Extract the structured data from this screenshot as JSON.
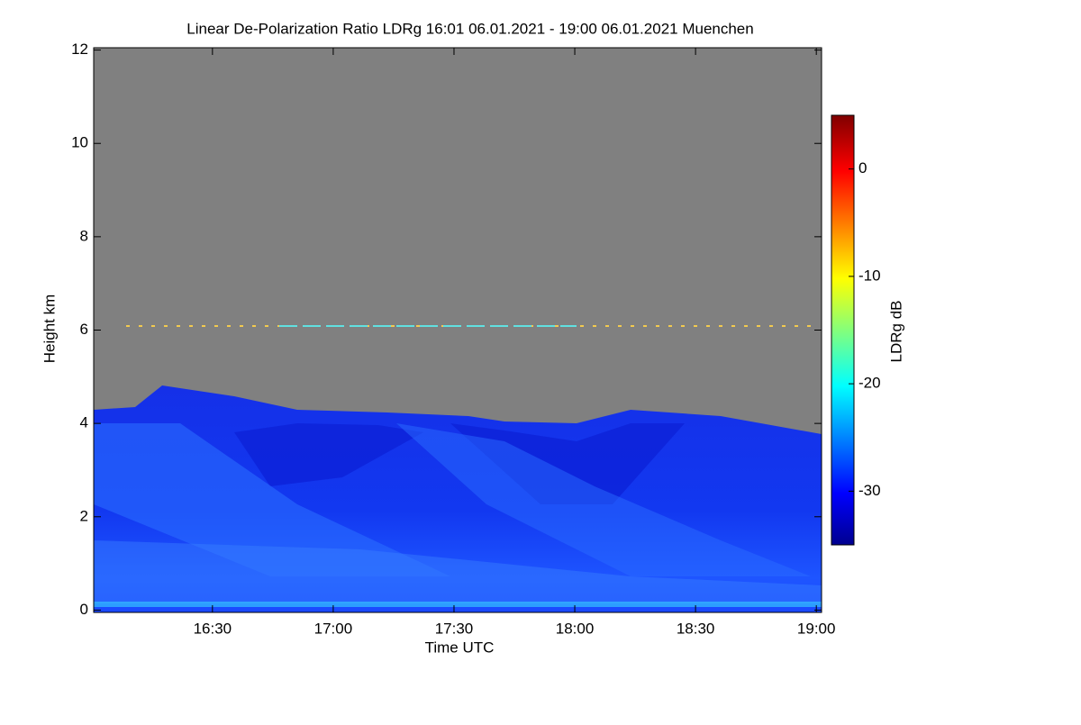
{
  "chart_data": {
    "type": "heatmap",
    "title": "Linear De-Polarization Ratio LDRg   16:01 06.01.2021 - 19:00 06.01.2021 Muenchen",
    "xlabel": "Time UTC",
    "ylabel": "Height km",
    "colorbar_label": "LDRg dB",
    "xlim": [
      960.5,
      1141.3
    ],
    "xticks": [
      {
        "value": 990,
        "label": "16:30"
      },
      {
        "value": 1020,
        "label": "17:00"
      },
      {
        "value": 1050,
        "label": "17:30"
      },
      {
        "value": 1080,
        "label": "18:00"
      },
      {
        "value": 1110,
        "label": "18:30"
      },
      {
        "value": 1140,
        "label": "19:00"
      }
    ],
    "ylim": [
      -0.05,
      12.05
    ],
    "yticks": [
      0,
      2,
      4,
      6,
      8,
      10,
      12
    ],
    "zlim": [
      -35,
      5
    ],
    "zticks": [
      0,
      -10,
      -20,
      -30
    ],
    "colormap": "jet"
  }
}
